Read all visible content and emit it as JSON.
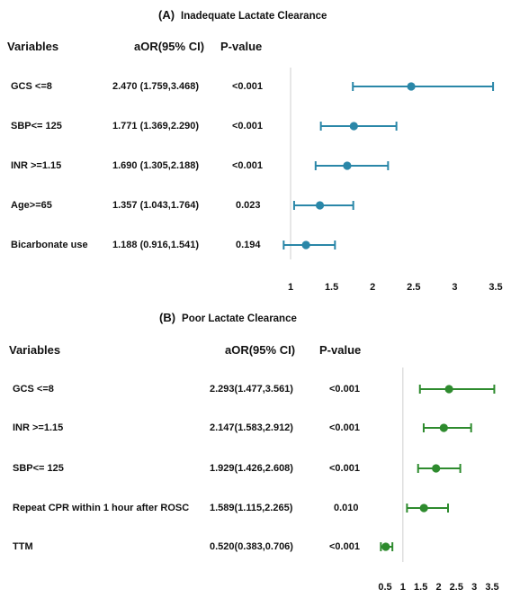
{
  "chart_data": [
    {
      "type": "forest",
      "panel_label": "(A)",
      "title": "Inadequate Lactate Clearance",
      "columns": {
        "variables": "Variables",
        "aor": "aOR(95% CI)",
        "pvalue": "P-value"
      },
      "color": "#2a87a8",
      "xlim": [
        1,
        3.5
      ],
      "ticks": [
        "1",
        "1.5",
        "2",
        "2.5",
        "3",
        "3.5"
      ],
      "reference_line": 1,
      "rows": [
        {
          "variable": "GCS <=8",
          "aor_text": "2.470 (1.759,3.468)",
          "p_text": "<0.001",
          "or": 2.47,
          "lo": 1.759,
          "hi": 3.468
        },
        {
          "variable": "SBP<= 125",
          "aor_text": "1.771 (1.369,2.290)",
          "p_text": "<0.001",
          "or": 1.771,
          "lo": 1.369,
          "hi": 2.29
        },
        {
          "variable": "INR >=1.15",
          "aor_text": "1.690 (1.305,2.188)",
          "p_text": "<0.001",
          "or": 1.69,
          "lo": 1.305,
          "hi": 2.188
        },
        {
          "variable": "Age>=65",
          "aor_text": "1.357 (1.043,1.764)",
          "p_text": "0.023",
          "or": 1.357,
          "lo": 1.043,
          "hi": 1.764
        },
        {
          "variable": "Bicarbonate use",
          "aor_text": "1.188 (0.916,1.541)",
          "p_text": "0.194",
          "or": 1.188,
          "lo": 0.916,
          "hi": 1.541
        }
      ]
    },
    {
      "type": "forest",
      "panel_label": "(B)",
      "title": "Poor Lactate Clearance",
      "columns": {
        "variables": "Variables",
        "aor": "aOR(95% CI)",
        "pvalue": "P-value"
      },
      "color": "#2e8b2e",
      "xlim": [
        0.5,
        3.5
      ],
      "ticks": [
        "0.5",
        "1",
        "1.5",
        "2",
        "2.5",
        "3",
        "3.5"
      ],
      "reference_line": 1,
      "rows": [
        {
          "variable": "GCS <=8",
          "aor_text": "2.293(1.477,3.561)",
          "p_text": "<0.001",
          "or": 2.293,
          "lo": 1.477,
          "hi": 3.561
        },
        {
          "variable": "INR >=1.15",
          "aor_text": "2.147(1.583,2.912)",
          "p_text": "<0.001",
          "or": 2.147,
          "lo": 1.583,
          "hi": 2.912
        },
        {
          "variable": "SBP<= 125",
          "aor_text": "1.929(1.426,2.608)",
          "p_text": "<0.001",
          "or": 1.929,
          "lo": 1.426,
          "hi": 2.608
        },
        {
          "variable": "Repeat CPR within 1 hour after ROSC",
          "aor_text": "1.589(1.115,2.265)",
          "p_text": "0.010",
          "or": 1.589,
          "lo": 1.115,
          "hi": 2.265
        },
        {
          "variable": "TTM",
          "aor_text": "0.520(0.383,0.706)",
          "p_text": "<0.001",
          "or": 0.52,
          "lo": 0.383,
          "hi": 0.706
        }
      ]
    }
  ]
}
